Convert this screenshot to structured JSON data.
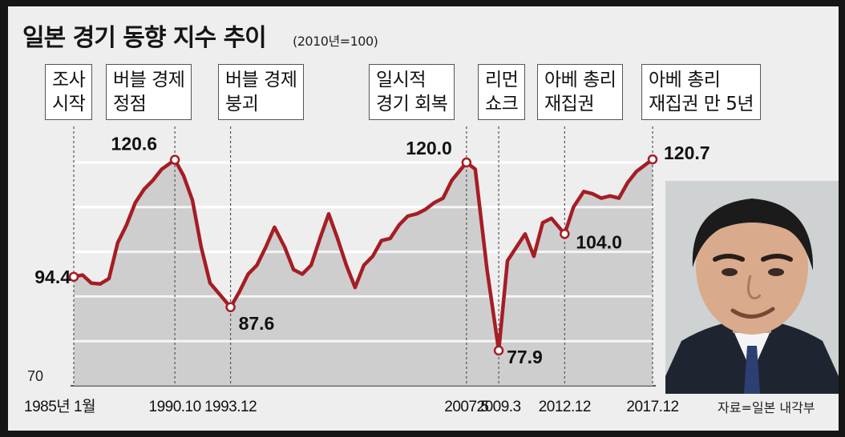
{
  "title": "일본 경기 동향 지수 추이",
  "subtitle": "(2010년=100)",
  "source": "자료=일본 내각부",
  "chart_data": {
    "type": "area",
    "title": "일본 경기 동향 지수 추이",
    "subtitle": "(2010년=100)",
    "x": [
      "1985-01",
      "1985-07",
      "1986-01",
      "1986-07",
      "1987-01",
      "1987-07",
      "1988-01",
      "1988-07",
      "1989-01",
      "1989-07",
      "1990-01",
      "1990-10",
      "1991-04",
      "1991-10",
      "1992-04",
      "1992-10",
      "1993-12",
      "1994-06",
      "1994-12",
      "1995-06",
      "1995-12",
      "1996-06",
      "1997-01",
      "1997-07",
      "1998-01",
      "1998-07",
      "1999-01",
      "1999-07",
      "2000-01",
      "2000-07",
      "2001-01",
      "2001-07",
      "2002-01",
      "2002-07",
      "2003-01",
      "2003-07",
      "2004-01",
      "2004-07",
      "2005-01",
      "2005-07",
      "2006-01",
      "2006-07",
      "2007-05",
      "2007-11",
      "2008-07",
      "2009-03",
      "2009-09",
      "2010-03",
      "2010-09",
      "2011-03",
      "2011-09",
      "2012-03",
      "2012-12",
      "2013-06",
      "2014-01",
      "2014-07",
      "2015-01",
      "2015-07",
      "2016-01",
      "2016-07",
      "2017-01",
      "2017-12"
    ],
    "values": [
      94.4,
      94.8,
      93.0,
      92.8,
      94.0,
      102.0,
      106.0,
      111.0,
      114.0,
      116.0,
      118.5,
      120.6,
      117.0,
      111.5,
      101.0,
      93.0,
      87.6,
      91.0,
      95.0,
      97.0,
      101.0,
      105.5,
      101.0,
      96.0,
      95.0,
      97.0,
      103.0,
      108.5,
      103.0,
      97.0,
      92.0,
      97.0,
      99.0,
      102.5,
      103.0,
      106.0,
      108.0,
      108.5,
      109.5,
      111.0,
      112.0,
      116.0,
      120.0,
      118.5,
      96.0,
      77.9,
      98.0,
      101.0,
      104.0,
      99.0,
      106.5,
      107.5,
      104.0,
      110.0,
      113.5,
      113.0,
      112.0,
      112.5,
      112.0,
      115.5,
      118.0,
      120.7
    ],
    "ylim": [
      70,
      123
    ],
    "ytick_labels": [
      "70"
    ],
    "xtick_labels": [
      "1985년 1월",
      "1990.10",
      "1993.12",
      "2007.5",
      "2009.3",
      "2012.12",
      "2017.12"
    ],
    "data_labels": [
      {
        "x": "1985-01",
        "value": 94.4,
        "text": "94.4"
      },
      {
        "x": "1990-10",
        "value": 120.6,
        "text": "120.6"
      },
      {
        "x": "1993-12",
        "value": 87.6,
        "text": "87.6"
      },
      {
        "x": "2007-05",
        "value": 120.0,
        "text": "120.0"
      },
      {
        "x": "2009-03",
        "value": 77.9,
        "text": "77.9"
      },
      {
        "x": "2012-12",
        "value": 104.0,
        "text": "104.0"
      },
      {
        "x": "2017-12",
        "value": 120.7,
        "text": "120.7"
      }
    ],
    "annotations": [
      {
        "x": "1985-01",
        "text": [
          "조사",
          "시작"
        ]
      },
      {
        "x": "1990-10",
        "text": [
          "버블 경제",
          "정점"
        ]
      },
      {
        "x": "1993-12",
        "text": [
          "버블 경제",
          "붕괴"
        ]
      },
      {
        "x": "2007-05",
        "text": [
          "일시적",
          "경기 회복"
        ]
      },
      {
        "x": "2009-03",
        "text": [
          "리먼",
          "쇼크"
        ]
      },
      {
        "x": "2012-12",
        "text": [
          "아베 총리",
          "재집권"
        ]
      },
      {
        "x": "2017-12",
        "text": [
          "아베 총리",
          "재집권 만 5년"
        ]
      }
    ],
    "grid": true,
    "colors": {
      "line": "#a51d24",
      "fill": "#c8c8c8",
      "background": "#eeeeee"
    }
  }
}
